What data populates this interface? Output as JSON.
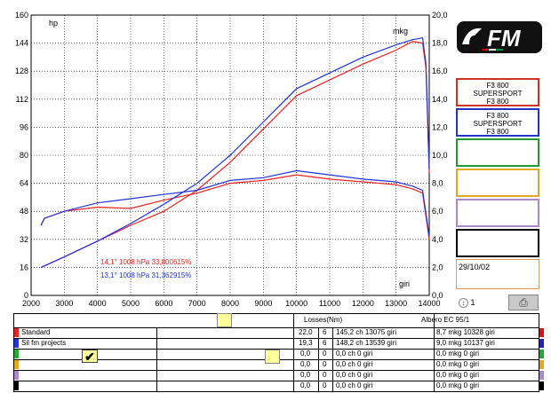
{
  "chart_data": {
    "type": "line",
    "x_axis": {
      "ticks": [
        "2000",
        "3000",
        "4000",
        "5000",
        "6000",
        "7000",
        "8000",
        "9000",
        "10000",
        "11000",
        "12000",
        "13000",
        "14000"
      ],
      "range": [
        2000,
        14000
      ],
      "label": "giri"
    },
    "y_left": {
      "ticks": [
        "0",
        "16",
        "32",
        "48",
        "64",
        "80",
        "96",
        "112",
        "128",
        "144",
        "160"
      ],
      "range": [
        0,
        160
      ],
      "label": "hp"
    },
    "y_right": {
      "ticks": [
        "0,0",
        "2,0",
        "4,0",
        "6,0",
        "8,0",
        "10,0",
        "12,0",
        "14,0",
        "16,0",
        "18,0",
        "20,0"
      ],
      "range": [
        0,
        20
      ],
      "label": "mkg"
    },
    "grid": true,
    "series": [
      {
        "name": "Standard",
        "color": "#ee2222",
        "power": [
          [
            2300,
            16
          ],
          [
            3000,
            22
          ],
          [
            4000,
            31
          ],
          [
            5000,
            40
          ],
          [
            6000,
            48
          ],
          [
            7000,
            60
          ],
          [
            8000,
            76
          ],
          [
            9000,
            95
          ],
          [
            10000,
            114
          ],
          [
            11000,
            123
          ],
          [
            12000,
            132
          ],
          [
            13000,
            140
          ],
          [
            13500,
            145
          ],
          [
            13800,
            144
          ],
          [
            13900,
            130
          ],
          [
            14000,
            70
          ]
        ],
        "torque": [
          [
            2300,
            5.0
          ],
          [
            2400,
            5.5
          ],
          [
            3000,
            6.0
          ],
          [
            4000,
            6.3
          ],
          [
            5000,
            6.2
          ],
          [
            6000,
            6.8
          ],
          [
            7000,
            7.3
          ],
          [
            8000,
            8.0
          ],
          [
            9000,
            8.2
          ],
          [
            10000,
            8.6
          ],
          [
            11000,
            8.3
          ],
          [
            12000,
            8.1
          ],
          [
            13000,
            7.9
          ],
          [
            13500,
            7.6
          ],
          [
            13800,
            7.3
          ],
          [
            14000,
            4.0
          ]
        ]
      },
      {
        "name": "Sil fm projects",
        "color": "#2233dd",
        "power": [
          [
            2300,
            16
          ],
          [
            3000,
            22
          ],
          [
            4000,
            31
          ],
          [
            5000,
            41
          ],
          [
            6000,
            52
          ],
          [
            7000,
            64
          ],
          [
            8000,
            80
          ],
          [
            9000,
            99
          ],
          [
            10000,
            118
          ],
          [
            11000,
            127
          ],
          [
            12000,
            136
          ],
          [
            13000,
            143
          ],
          [
            13500,
            146
          ],
          [
            13800,
            147
          ],
          [
            13900,
            132
          ],
          [
            14000,
            72
          ]
        ],
        "torque": [
          [
            2300,
            5.0
          ],
          [
            2400,
            5.5
          ],
          [
            3000,
            6.0
          ],
          [
            4000,
            6.6
          ],
          [
            5000,
            6.9
          ],
          [
            6000,
            7.2
          ],
          [
            7000,
            7.5
          ],
          [
            8000,
            8.2
          ],
          [
            9000,
            8.4
          ],
          [
            10000,
            8.9
          ],
          [
            11000,
            8.6
          ],
          [
            12000,
            8.3
          ],
          [
            13000,
            8.1
          ],
          [
            13500,
            7.8
          ],
          [
            13800,
            7.5
          ],
          [
            14000,
            4.2
          ]
        ]
      }
    ],
    "annotations": [
      {
        "text": "14,1° 1008 hPa  33,800615%",
        "color": "#ee2222"
      },
      {
        "text": "13,1° 1008 hPa  31,362915%",
        "color": "#2233dd"
      }
    ]
  },
  "logo": {
    "text": "FM"
  },
  "slots": [
    {
      "lines": [
        "F3 800",
        "SUPERSPORT",
        "F3 800"
      ],
      "border": "#cc3322"
    },
    {
      "lines": [
        "F3 800",
        "SUPERSPORT",
        "F3 800"
      ],
      "border": "#2233cc"
    },
    {
      "lines": [],
      "border": "#229933"
    },
    {
      "lines": [],
      "border": "#ddaa22"
    },
    {
      "lines": [],
      "border": "#aa88cc"
    },
    {
      "lines": [],
      "border": "#000000"
    }
  ],
  "date": "29/10/02",
  "spinner_value": "1",
  "table": {
    "losses_label": "Losses(Nm)",
    "shaft_label": "Albero EC 95/1",
    "rows": [
      {
        "name": "Standard",
        "color": "#ee2222",
        "end_color": "#dd1111",
        "loss": "22,0",
        "n": "6",
        "power": "145,2 ch 13075 giri",
        "torque": "8,7 mkg 10328 giri"
      },
      {
        "name": "Sil fm projects",
        "color": "#2233dd",
        "end_color": "#2222cc",
        "loss": "19,3",
        "n": "6",
        "power": "148,2 ch 13539 giri",
        "torque": "9,0 mkg 10137 giri"
      },
      {
        "name": "",
        "color": "#22aa33",
        "end_color": "#22aa33",
        "loss": "0,0",
        "n": "0",
        "power": "0,0 ch 0 giri",
        "torque": "0,0 mkg 0 giri"
      },
      {
        "name": "",
        "color": "#ddaa22",
        "end_color": "#ddaa22",
        "loss": "0,0",
        "n": "0",
        "power": "0,0 ch 0 giri",
        "torque": "0,0 mkg 0 giri"
      },
      {
        "name": "",
        "color": "#aa88cc",
        "end_color": "#aa88cc",
        "loss": "0,0",
        "n": "0",
        "power": "0,0 ch 0 giri",
        "torque": "0,0 mkg 0 giri"
      },
      {
        "name": "",
        "color": "#000000",
        "end_color": "#000000",
        "loss": "0,0",
        "n": "0",
        "power": "0,0 ch 0 giri",
        "torque": "0,0 mkg 0 giri"
      }
    ]
  }
}
